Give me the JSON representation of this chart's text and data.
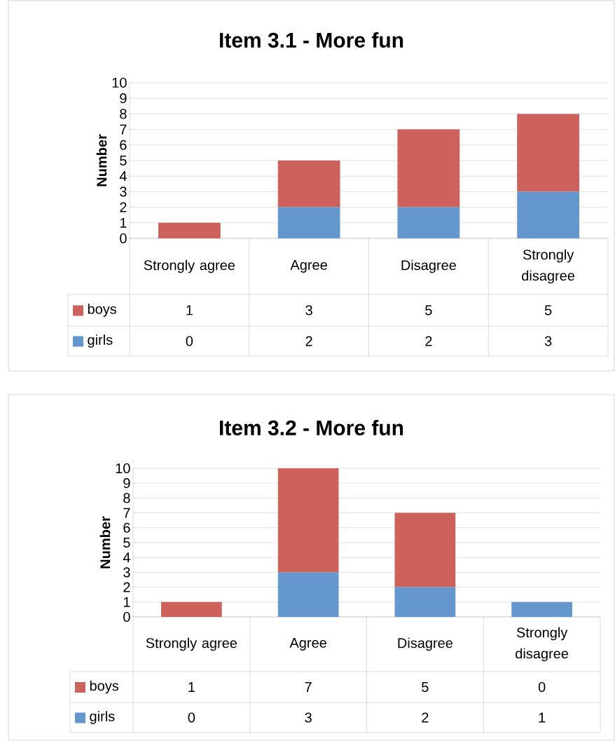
{
  "chart_data": [
    {
      "type": "bar",
      "title": "Item 3.1 - More fun",
      "ylabel": "Number",
      "categories": [
        "Strongly agree",
        "Agree",
        "Disagree",
        "Strongly disagree"
      ],
      "stacked": true,
      "series": [
        {
          "name": "girls",
          "color": "#6497cd",
          "values": [
            0,
            2,
            2,
            3
          ]
        },
        {
          "name": "boys",
          "color": "#cd625c",
          "values": [
            1,
            3,
            5,
            5
          ]
        }
      ],
      "ylim": [
        0,
        10
      ],
      "yticks": [
        0,
        1,
        2,
        3,
        4,
        5,
        6,
        7,
        8,
        9,
        10
      ],
      "grid": "y",
      "legend": "bottom",
      "data_labels": true
    },
    {
      "type": "bar",
      "title": "Item 3.2 - More fun",
      "ylabel": "Number",
      "categories": [
        "Strongly agree",
        "Agree",
        "Disagree",
        "Strongly disagree"
      ],
      "stacked": true,
      "series": [
        {
          "name": "girls",
          "color": "#6497cd",
          "values": [
            0,
            3,
            2,
            1
          ]
        },
        {
          "name": "boys",
          "color": "#cd625c",
          "values": [
            1,
            7,
            5,
            0
          ]
        }
      ],
      "ylim": [
        0,
        10
      ],
      "yticks": [
        0,
        1,
        2,
        3,
        4,
        5,
        6,
        7,
        8,
        9,
        10
      ],
      "grid": "y",
      "legend": "bottom",
      "data_labels": true
    }
  ]
}
